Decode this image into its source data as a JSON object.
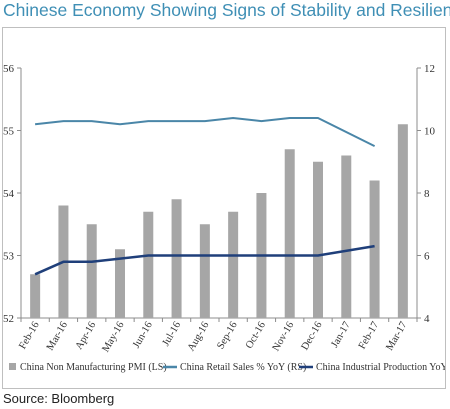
{
  "title": "Chinese Economy Showing Signs of Stability and Resilience",
  "source": "Source: Bloomberg",
  "chart_data": {
    "type": "bar",
    "categories": [
      "Feb-16",
      "Mar-16",
      "Apr-16",
      "May-16",
      "Jun-16",
      "Jul-16",
      "Aug-16",
      "Sep-16",
      "Oct-16",
      "Nov-16",
      "Dec-16",
      "Jan-17",
      "Feb-17",
      "Mar-17"
    ],
    "y_left": {
      "ylim": [
        52,
        56
      ],
      "ticks": [
        52,
        53,
        54,
        55,
        56
      ]
    },
    "y_right": {
      "ylim": [
        4,
        12
      ],
      "ticks": [
        4,
        6,
        8,
        10,
        12
      ]
    },
    "series": [
      {
        "name": "China Non Manufacturing PMI (LS)",
        "type": "bar",
        "axis": "left",
        "color": "#a6a6a6",
        "values": [
          52.7,
          53.8,
          53.5,
          53.1,
          53.7,
          53.9,
          53.5,
          53.7,
          54.0,
          54.7,
          54.5,
          54.6,
          54.2,
          55.1
        ]
      },
      {
        "name": "China Retail Sales % YoY (RS)",
        "type": "line",
        "axis": "right",
        "color": "#4a86a8",
        "values": [
          10.2,
          10.3,
          10.3,
          10.2,
          10.3,
          10.3,
          10.3,
          10.4,
          10.3,
          10.4,
          10.4,
          null,
          9.5,
          null
        ]
      },
      {
        "name": "China Industrial Production YoY (RS)",
        "type": "line",
        "axis": "right",
        "color": "#1f3f7a",
        "values": [
          5.4,
          5.8,
          5.8,
          5.9,
          6.0,
          6.0,
          6.0,
          6.0,
          6.0,
          6.0,
          6.0,
          null,
          6.3,
          null
        ]
      }
    ],
    "legend_position": "bottom",
    "grid": false
  }
}
